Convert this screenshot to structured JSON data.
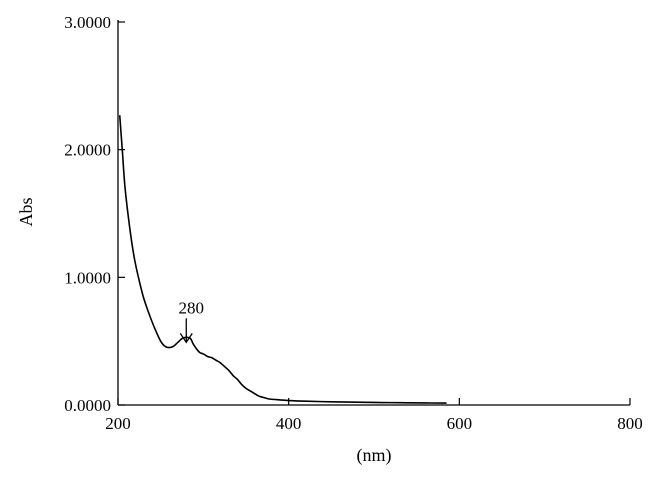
{
  "chart_data": {
    "type": "line",
    "title": "",
    "xlabel": "(nm)",
    "ylabel": "Abs",
    "xlim": [
      200,
      800
    ],
    "ylim": [
      0,
      3
    ],
    "x_ticks": [
      200,
      400,
      600,
      800
    ],
    "x_tick_labels": [
      "200",
      "400",
      "600",
      "800"
    ],
    "y_ticks": [
      0,
      1,
      2,
      3
    ],
    "y_tick_labels": [
      "0.0000",
      "1.0000",
      "2.0000",
      "3.0000"
    ],
    "grid": false,
    "legend": "none",
    "line_color": "#000000",
    "series": [
      {
        "x": [
          202,
          205,
          208,
          212,
          216,
          220,
          225,
          230,
          235,
          240,
          245,
          250,
          255,
          260,
          265,
          270,
          275,
          280,
          285,
          288,
          292,
          296,
          300,
          305,
          310,
          315,
          320,
          325,
          330,
          335,
          340,
          345,
          350,
          355,
          360,
          365,
          370,
          375,
          380,
          390,
          400,
          420,
          450,
          480,
          500,
          530,
          560,
          585
        ],
        "y": [
          2.27,
          2.0,
          1.72,
          1.48,
          1.28,
          1.12,
          0.97,
          0.84,
          0.74,
          0.65,
          0.57,
          0.5,
          0.46,
          0.45,
          0.46,
          0.49,
          0.52,
          0.53,
          0.52,
          0.48,
          0.44,
          0.41,
          0.4,
          0.38,
          0.37,
          0.35,
          0.33,
          0.3,
          0.27,
          0.23,
          0.2,
          0.16,
          0.13,
          0.11,
          0.09,
          0.07,
          0.06,
          0.05,
          0.045,
          0.04,
          0.035,
          0.03,
          0.025,
          0.022,
          0.02,
          0.018,
          0.016,
          0.015
        ]
      }
    ],
    "annotations": [
      {
        "text": "280",
        "x": 280,
        "y": 0.53,
        "arrow": true
      }
    ]
  }
}
